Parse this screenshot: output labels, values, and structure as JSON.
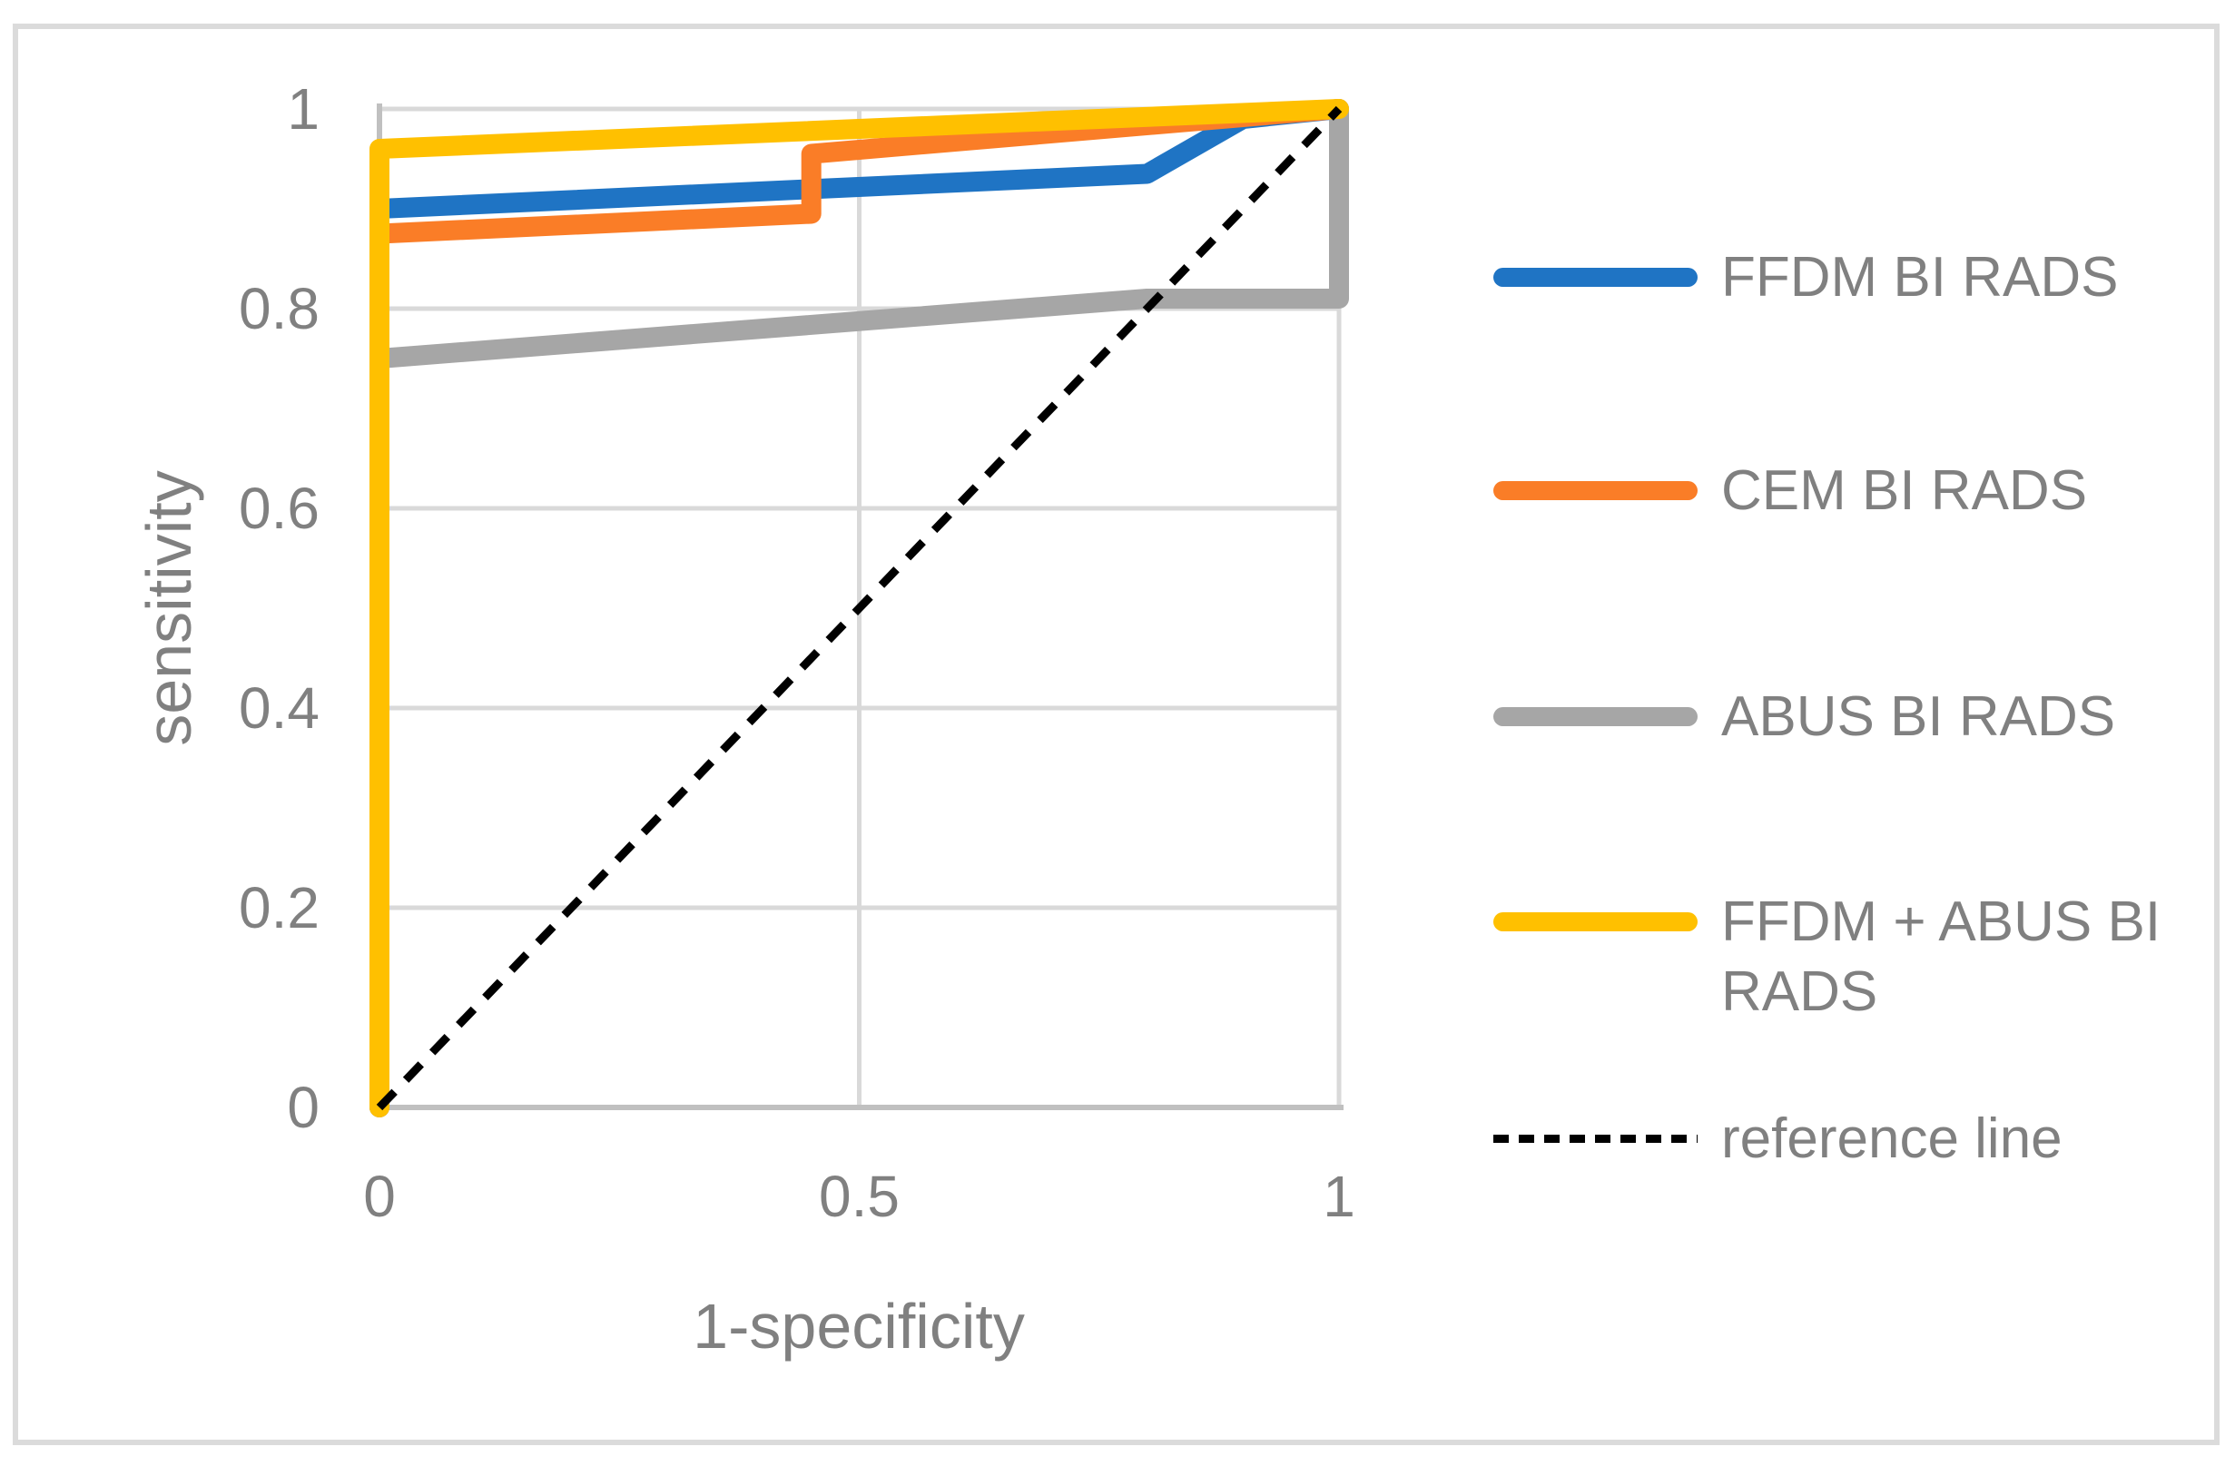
{
  "colors": {
    "blue": "#1F74C4",
    "orange": "#FA7D27",
    "gray": "#A6A6A6",
    "yellow": "#FFC000",
    "reference": "#000000",
    "grid": "#D9D9D9",
    "axis": "#C0C0C0",
    "text": "#808080",
    "frame": "#DBDBDB",
    "background": "#FFFFFF"
  },
  "chart_data": {
    "type": "line",
    "title": "",
    "xlabel": "1-specificity",
    "ylabel": "sensitivity",
    "xlim": [
      0,
      1
    ],
    "ylim": [
      0,
      1
    ],
    "grid": true,
    "legend_position": "right",
    "x_ticks": [
      {
        "value": 0,
        "label": "0"
      },
      {
        "value": 0.5,
        "label": "0.5"
      },
      {
        "value": 1,
        "label": "1"
      }
    ],
    "y_ticks": [
      {
        "value": 0,
        "label": "0"
      },
      {
        "value": 0.2,
        "label": "0.2"
      },
      {
        "value": 0.4,
        "label": "0.4"
      },
      {
        "value": 0.6,
        "label": "0.6"
      },
      {
        "value": 0.8,
        "label": "0.8"
      },
      {
        "value": 1,
        "label": "1"
      }
    ],
    "series": [
      {
        "name": "FFDM BI RADS",
        "color": "#1F74C4",
        "dashed": false,
        "points": [
          [
            0,
            0
          ],
          [
            0,
            0.9
          ],
          [
            0.8,
            0.935
          ],
          [
            0.9,
            0.99
          ],
          [
            1,
            1
          ]
        ]
      },
      {
        "name": "CEM BI RADS",
        "color": "#FA7D27",
        "dashed": false,
        "points": [
          [
            0,
            0
          ],
          [
            0,
            0.875
          ],
          [
            0.45,
            0.895
          ],
          [
            0.45,
            0.955
          ],
          [
            1,
            1
          ]
        ]
      },
      {
        "name": "ABUS BI RADS",
        "color": "#A6A6A6",
        "dashed": false,
        "points": [
          [
            0,
            0
          ],
          [
            0,
            0.75
          ],
          [
            0.8,
            0.81
          ],
          [
            1,
            0.81
          ],
          [
            1,
            1
          ]
        ]
      },
      {
        "name": "FFDM + ABUS BI RADS",
        "color": "#FFC000",
        "dashed": false,
        "points": [
          [
            0,
            0
          ],
          [
            0,
            0.96
          ],
          [
            1,
            1
          ]
        ]
      },
      {
        "name": "reference line",
        "color": "#000000",
        "dashed": true,
        "points": [
          [
            0,
            0
          ],
          [
            1,
            1
          ]
        ]
      }
    ]
  }
}
